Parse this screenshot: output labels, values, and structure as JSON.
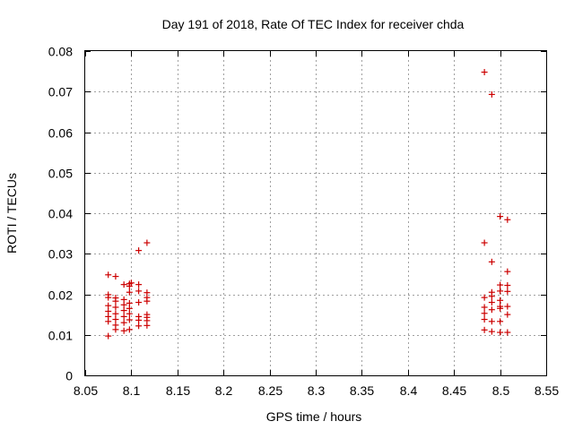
{
  "chart_data": {
    "type": "scatter",
    "title": "Day 191 of 2018, Rate Of TEC Index for receiver chda",
    "xlabel": "GPS time / hours",
    "ylabel": "ROTI / TECUs",
    "xlim": [
      8.05,
      8.55
    ],
    "ylim": [
      0,
      0.08
    ],
    "xticks": [
      8.05,
      8.1,
      8.15,
      8.2,
      8.25,
      8.3,
      8.35,
      8.4,
      8.45,
      8.5,
      8.55
    ],
    "xtick_labels": [
      "8.05",
      "8.1",
      "8.15",
      "8.2",
      "8.25",
      "8.3",
      "8.35",
      "8.4",
      "8.45",
      "8.5",
      "8.55"
    ],
    "yticks": [
      0,
      0.01,
      0.02,
      0.03,
      0.04,
      0.05,
      0.06,
      0.07,
      0.08
    ],
    "ytick_labels": [
      "0",
      "0.01",
      "0.02",
      "0.03",
      "0.04",
      "0.05",
      "0.06",
      "0.07",
      "0.08"
    ],
    "grid": true,
    "marker": "+",
    "color": "#cc0000",
    "series": [
      {
        "name": "ROTI",
        "points": [
          [
            8.075,
            0.0248
          ],
          [
            8.075,
            0.0199
          ],
          [
            8.075,
            0.0192
          ],
          [
            8.075,
            0.0172
          ],
          [
            8.075,
            0.0158
          ],
          [
            8.075,
            0.0145
          ],
          [
            8.075,
            0.0133
          ],
          [
            8.075,
            0.0097
          ],
          [
            8.083,
            0.0244
          ],
          [
            8.083,
            0.0191
          ],
          [
            8.083,
            0.0183
          ],
          [
            8.083,
            0.0168
          ],
          [
            8.083,
            0.0152
          ],
          [
            8.083,
            0.0138
          ],
          [
            8.083,
            0.0124
          ],
          [
            8.083,
            0.0113
          ],
          [
            8.092,
            0.0224
          ],
          [
            8.092,
            0.0187
          ],
          [
            8.092,
            0.0174
          ],
          [
            8.092,
            0.016
          ],
          [
            8.092,
            0.0145
          ],
          [
            8.092,
            0.013
          ],
          [
            8.092,
            0.011
          ],
          [
            8.098,
            0.0226
          ],
          [
            8.098,
            0.022
          ],
          [
            8.098,
            0.0205
          ],
          [
            8.098,
            0.0178
          ],
          [
            8.098,
            0.0165
          ],
          [
            8.098,
            0.0152
          ],
          [
            8.098,
            0.0137
          ],
          [
            8.098,
            0.0113
          ],
          [
            8.1,
            0.0228
          ],
          [
            8.108,
            0.0308
          ],
          [
            8.108,
            0.0224
          ],
          [
            8.108,
            0.0208
          ],
          [
            8.108,
            0.018
          ],
          [
            8.108,
            0.0145
          ],
          [
            8.108,
            0.0136
          ],
          [
            8.108,
            0.0122
          ],
          [
            8.117,
            0.0327
          ],
          [
            8.117,
            0.0204
          ],
          [
            8.117,
            0.0192
          ],
          [
            8.117,
            0.0183
          ],
          [
            8.117,
            0.015
          ],
          [
            8.117,
            0.0143
          ],
          [
            8.117,
            0.0135
          ],
          [
            8.117,
            0.0123
          ],
          [
            8.483,
            0.0748
          ],
          [
            8.483,
            0.0327
          ],
          [
            8.483,
            0.0192
          ],
          [
            8.483,
            0.0168
          ],
          [
            8.483,
            0.0153
          ],
          [
            8.483,
            0.0138
          ],
          [
            8.483,
            0.0112
          ],
          [
            8.491,
            0.0693
          ],
          [
            8.491,
            0.028
          ],
          [
            8.491,
            0.0205
          ],
          [
            8.491,
            0.0195
          ],
          [
            8.491,
            0.018
          ],
          [
            8.491,
            0.0162
          ],
          [
            8.491,
            0.0133
          ],
          [
            8.491,
            0.0108
          ],
          [
            8.5,
            0.0392
          ],
          [
            8.5,
            0.0223
          ],
          [
            8.5,
            0.0208
          ],
          [
            8.5,
            0.0185
          ],
          [
            8.5,
            0.017
          ],
          [
            8.5,
            0.0165
          ],
          [
            8.5,
            0.0133
          ],
          [
            8.5,
            0.0106
          ],
          [
            8.508,
            0.0384
          ],
          [
            8.508,
            0.0256
          ],
          [
            8.508,
            0.0222
          ],
          [
            8.508,
            0.0207
          ],
          [
            8.508,
            0.017
          ],
          [
            8.508,
            0.015
          ],
          [
            8.508,
            0.0106
          ]
        ]
      }
    ]
  }
}
